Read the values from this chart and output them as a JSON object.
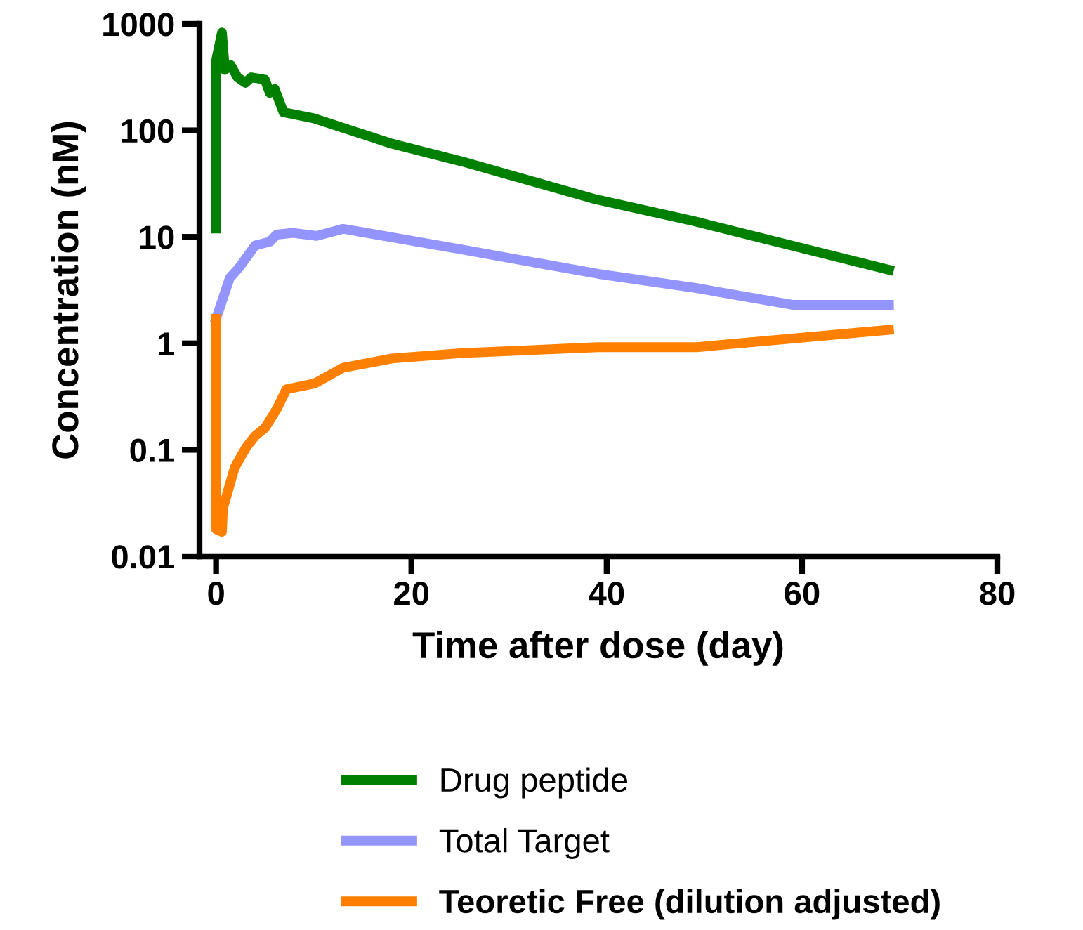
{
  "chart_data": {
    "type": "line",
    "xlabel": "Time after dose (day)",
    "ylabel": "Concentration (nM)",
    "log": "y",
    "xlim": [
      -1.7,
      80
    ],
    "xticks": [
      0,
      20,
      40,
      60,
      80
    ],
    "ylim": [
      0.01,
      1000
    ],
    "yticks": [
      0.01,
      0.1,
      1,
      10,
      100,
      1000
    ],
    "grid": false,
    "legend": "bottom",
    "marker": "none",
    "line_style": "solid",
    "series": [
      {
        "name": "Drug peptide",
        "color": "#008000",
        "x": [
          0,
          0,
          0.6,
          0.9,
          1.5,
          2.2,
          3,
          3.6,
          5,
          5.5,
          6,
          6.9,
          10,
          18,
          25.2,
          38.9,
          49,
          68.9
        ],
        "values": [
          12,
          450,
          830,
          370,
          410,
          315,
          280,
          315,
          300,
          225,
          245,
          148,
          130,
          75,
          51,
          22.5,
          14,
          4.9
        ]
      },
      {
        "name": "Total Target",
        "color": "#9494ff",
        "x": [
          0,
          1.4,
          2.4,
          4,
          5.5,
          6.2,
          7.9,
          10.3,
          13,
          25.2,
          39.1,
          49.2,
          59,
          68.9
        ],
        "values": [
          1.7,
          4.1,
          5.2,
          8.3,
          9.0,
          10.5,
          10.9,
          10.2,
          11.9,
          7.6,
          4.5,
          3.3,
          2.3,
          2.3
        ]
      },
      {
        "name": "Teoretic Free (dilution adjusted)",
        "color": "#ff8000",
        "x": [
          0,
          0,
          0.6,
          0.7,
          1.9,
          3.1,
          4,
          5,
          5.8,
          6.3,
          7.2,
          10.1,
          13,
          18,
          25.2,
          39.1,
          49.2,
          68.9
        ],
        "values": [
          1.7,
          0.018,
          0.017,
          0.028,
          0.068,
          0.106,
          0.135,
          0.16,
          0.21,
          0.25,
          0.37,
          0.42,
          0.59,
          0.72,
          0.81,
          0.92,
          0.92,
          1.34
        ]
      }
    ]
  }
}
